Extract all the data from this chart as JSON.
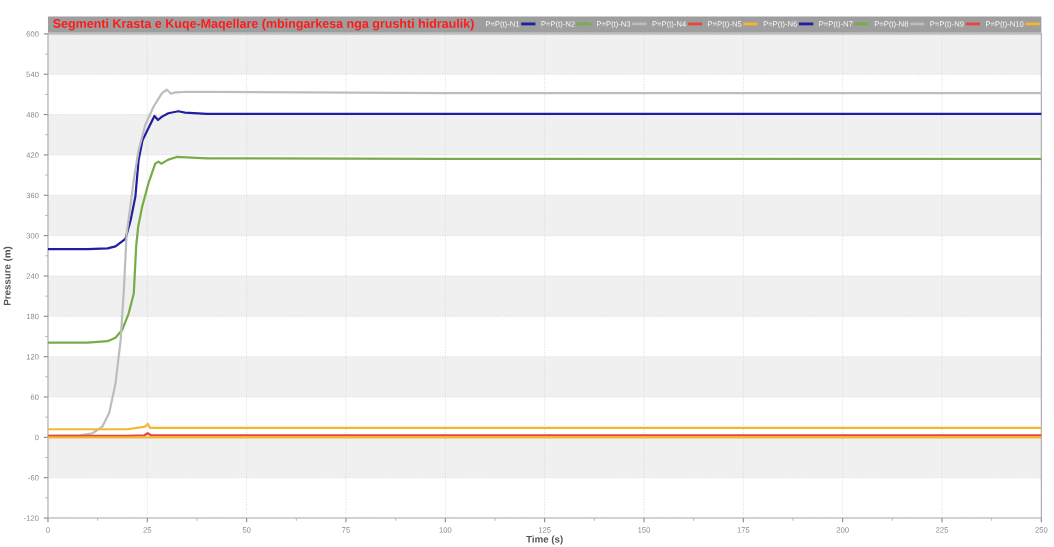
{
  "chart_data": {
    "type": "line",
    "title": "Segmenti Krasta e Kuqe-Maqellare (mbingarkesa nga grushti hidraulik)",
    "xlabel": "Time (s)",
    "ylabel": "Pressure (m)",
    "xlim": [
      0,
      250
    ],
    "xticks": [
      0,
      25,
      50,
      75,
      100,
      125,
      150,
      175,
      200,
      225,
      250
    ],
    "ylim": [
      -120,
      600
    ],
    "yticks": [
      -120,
      -60,
      0,
      60,
      120,
      180,
      240,
      300,
      360,
      420,
      480,
      540,
      600
    ],
    "grid": true,
    "legend": "top right",
    "marker": "none",
    "line_style": "solid",
    "series": [
      {
        "name": "P=P(t)-N1",
        "color": "#1f1fa0",
        "x": [
          0,
          10,
          15,
          17,
          19.5,
          20.8,
          22,
          22.8,
          23.8,
          25.3,
          26.8,
          27.7,
          28.7,
          30.3,
          32.8,
          34.5,
          40,
          100,
          250
        ],
        "values": [
          280,
          280,
          281,
          284,
          295,
          323,
          358,
          412,
          442,
          460,
          478,
          472,
          477,
          482,
          485,
          483,
          481,
          481,
          481
        ]
      },
      {
        "name": "P=P(t)-N2",
        "color": "#7aab4a",
        "x": [
          0,
          10,
          15,
          17,
          18.7,
          20.3,
          21.6,
          22.2,
          22.7,
          23.7,
          25.3,
          27,
          27.8,
          28.5,
          30.3,
          32.4,
          40,
          100,
          250
        ],
        "values": [
          141,
          141,
          143,
          148,
          160,
          184,
          214,
          284,
          313,
          343,
          378,
          407,
          410,
          407,
          413,
          417,
          415,
          414,
          414
        ]
      },
      {
        "name": "P=P(t)-N3",
        "color": "#bdbdbd",
        "x": [
          0,
          8,
          11.2,
          13.7,
          15.4,
          17,
          18.3,
          19.1,
          19.8,
          20.5,
          21.6,
          22.8,
          24.5,
          26.6,
          28.7,
          29.9,
          31,
          32,
          35.3,
          100,
          250
        ],
        "values": [
          2,
          3,
          6,
          16,
          36,
          80,
          145,
          219,
          303,
          333,
          383,
          427,
          465,
          492,
          512,
          517,
          511,
          513,
          514,
          512,
          512
        ]
      },
      {
        "name": "P=P(t)-N4",
        "color": "#e8463c",
        "x": [
          0,
          20,
          24.3,
          25.1,
          25.9,
          30,
          250
        ],
        "values": [
          2,
          2,
          3,
          6,
          3,
          3,
          3
        ]
      },
      {
        "name": "P=P(t)-N5",
        "color": "#f5b731",
        "x": [
          0,
          20,
          24.5,
          25.1,
          25.7,
          30,
          250
        ],
        "values": [
          12,
          12,
          16,
          20,
          14,
          14,
          14
        ]
      },
      {
        "name": "P=P(t)-N6",
        "color": "#1f1fa0"
      },
      {
        "name": "P=P(t)-N7",
        "color": "#7aab4a"
      },
      {
        "name": "P=P(t)-N8",
        "color": "#bdbdbd"
      },
      {
        "name": "P=P(t)-N9",
        "color": "#e8463c"
      },
      {
        "name": "P=P(t)-N10",
        "color": "#f5b731",
        "x": [
          0,
          250
        ],
        "values": [
          0,
          0
        ]
      }
    ]
  }
}
